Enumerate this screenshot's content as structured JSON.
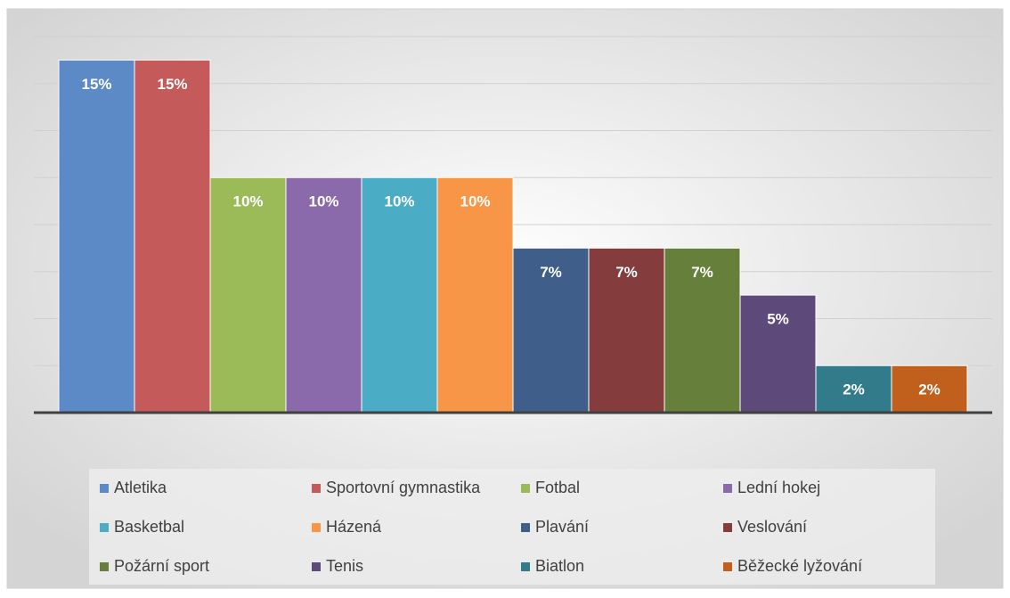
{
  "chart_data": {
    "type": "bar",
    "categories": [
      "Atletika",
      "Sportovní gymnastika",
      "Fotbal",
      "Lední hokej",
      "Basketbal",
      "Házená",
      "Plavání",
      "Veslování",
      "Požární sport",
      "Tenis",
      "Biatlon",
      "Běžecké lyžování"
    ],
    "values": [
      15,
      15,
      10,
      10,
      10,
      10,
      7,
      7,
      7,
      5,
      2,
      2
    ],
    "value_labels": [
      "15%",
      "15%",
      "10%",
      "10%",
      "10%",
      "10%",
      "7%",
      "7%",
      "7%",
      "5%",
      "2%",
      "2%"
    ],
    "colors": [
      "#5b8ac6",
      "#c55a5a",
      "#9bbb59",
      "#8a6aab",
      "#4bacc6",
      "#f79646",
      "#3f5f8a",
      "#843c3c",
      "#66803c",
      "#5d4a7a",
      "#327b8a",
      "#c0601c"
    ],
    "ylim": [
      0,
      16
    ],
    "yticks": [
      0,
      2,
      4,
      6,
      8,
      10,
      12,
      14,
      16
    ],
    "grid": true,
    "legend": "bottom"
  }
}
